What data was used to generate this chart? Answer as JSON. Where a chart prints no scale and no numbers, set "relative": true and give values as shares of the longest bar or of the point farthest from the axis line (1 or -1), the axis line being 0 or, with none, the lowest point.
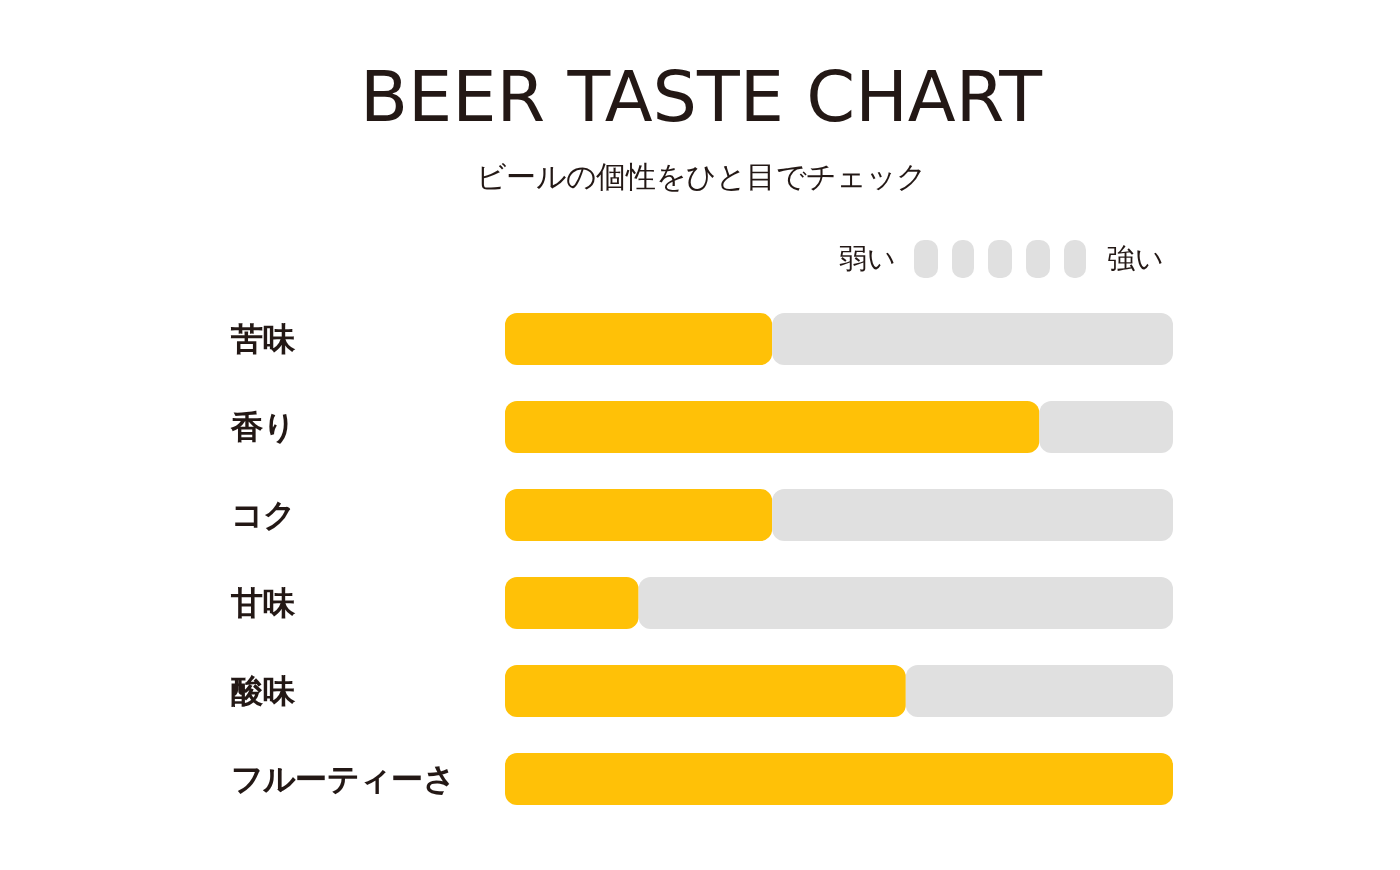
{
  "chart_data": {
    "type": "bar",
    "orientation": "horizontal",
    "relative": true,
    "stacked": true,
    "title": "BEER TASTE CHART",
    "subtitle": "ビールの個性をひと目でチェック",
    "categories": [
      "苦味",
      "香り",
      "コク",
      "甘味",
      "酸味",
      "フルーティーさ"
    ],
    "series": [
      {
        "color": "#ffc107",
        "values": [
          0.4,
          0.8,
          0.4,
          0.2,
          0.6,
          1
        ]
      },
      {
        "color": "#e0e0e0",
        "values": [
          0.6,
          0.2,
          0.6,
          0.8,
          0.4,
          0
        ]
      }
    ],
    "annotations": [
      "弱い",
      "強い"
    ]
  }
}
